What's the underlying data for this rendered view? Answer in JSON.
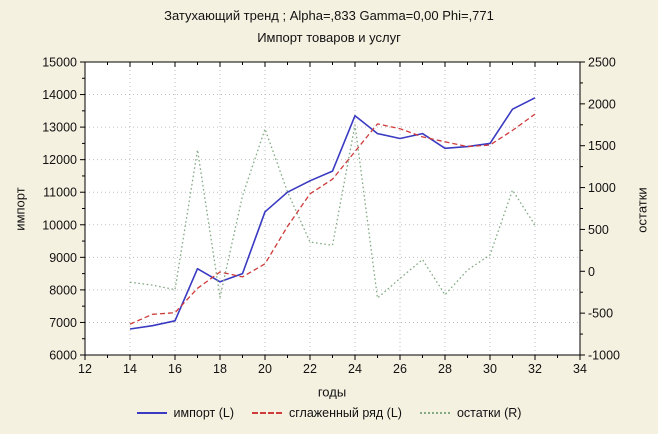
{
  "colors": {
    "background": "#f5f1e1",
    "plot_background": "#ffffff",
    "grid": "#bdbdbd",
    "axis": "#000000",
    "text": "#111111"
  },
  "chart_data": {
    "type": "line",
    "title": "Затухающий тренд ; Alpha=,833 Gamma=0,00 Phi=,771",
    "subtitle": "Импорт товаров и услуг",
    "xlabel": "годы",
    "ylabel_left": "импорт",
    "ylabel_right": "остатки",
    "xlim": [
      12,
      34
    ],
    "x_major_step": 2,
    "x_minor_step": 1,
    "ylim_left": [
      6000,
      15000
    ],
    "y_left_major_step": 1000,
    "y_left_minor_step": 500,
    "ylim_right": [
      -1000,
      2500
    ],
    "y_right_major_step": 500,
    "y_right_minor_step": 250,
    "grid": true,
    "legend_position": "bottom",
    "x": [
      14,
      15,
      16,
      17,
      18,
      19,
      20,
      21,
      22,
      23,
      24,
      25,
      26,
      27,
      28,
      29,
      30,
      31,
      32
    ],
    "series": [
      {
        "name": "импорт (L)",
        "axis": "left",
        "style": "solid",
        "color": "#3a3ac2",
        "values": [
          6800,
          6900,
          7050,
          8650,
          8250,
          8500,
          10400,
          11000,
          11350,
          11650,
          13350,
          12800,
          12650,
          12800,
          12350,
          12400,
          12500,
          13550,
          13900
        ]
      },
      {
        "name": "сглаженный ряд (L)",
        "axis": "left",
        "style": "dashed",
        "color": "#cf3a3a",
        "values": [
          6950,
          7250,
          7300,
          8050,
          8550,
          8400,
          8800,
          9950,
          10950,
          11400,
          12250,
          13100,
          12950,
          12700,
          12550,
          12400,
          12450,
          12900,
          13400
        ]
      },
      {
        "name": "остатки (R)",
        "axis": "right",
        "style": "dotted",
        "color": "#84aa84",
        "values": [
          -130,
          -165,
          -220,
          1450,
          -310,
          900,
          1700,
          950,
          350,
          310,
          1750,
          -320,
          -85,
          140,
          -280,
          15,
          195,
          970,
          550
        ]
      }
    ]
  }
}
